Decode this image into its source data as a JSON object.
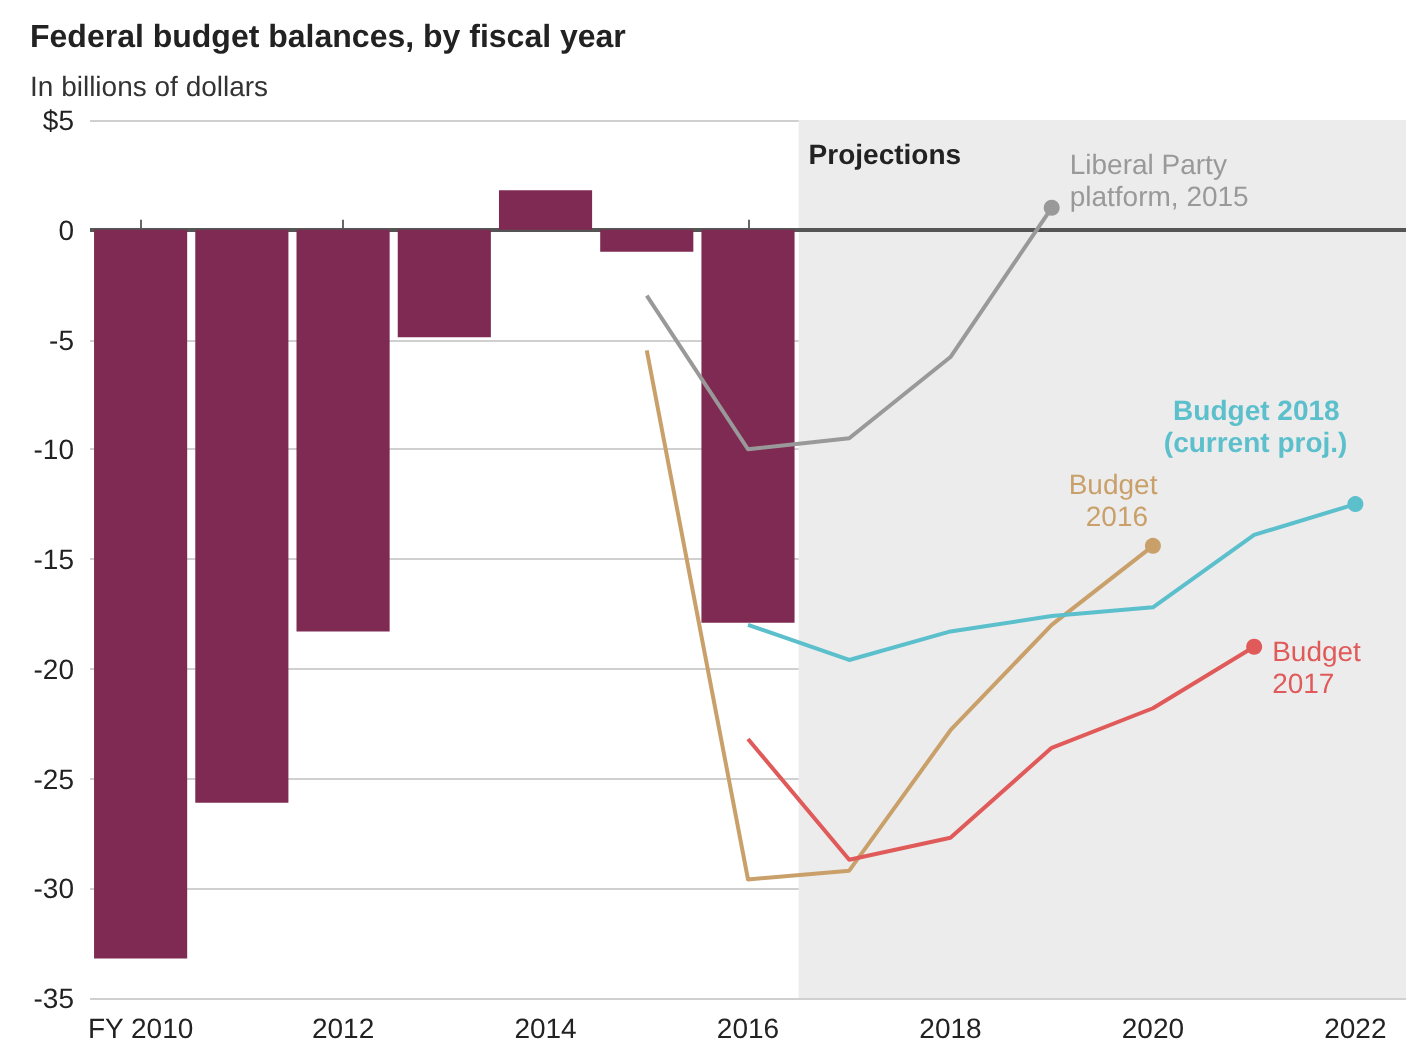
{
  "chart_data": {
    "type": "bar",
    "title": "Federal budget balances, by fiscal year",
    "subtitle": "In billions of dollars",
    "x": [
      2010,
      2011,
      2012,
      2013,
      2014,
      2015,
      2016
    ],
    "series": [
      {
        "color": "#7f2a52",
        "values": [
          -33.2,
          -26.1,
          -18.3,
          -4.9,
          1.8,
          -1.0,
          -17.9
        ]
      },
      {
        "type": "line",
        "name": "Liberal Party platform, 2015",
        "color": "#999999",
        "x": [
          2015,
          2016,
          2017,
          2018,
          2019
        ],
        "values": [
          -3.0,
          -10.0,
          -9.5,
          -5.8,
          1.0
        ]
      },
      {
        "type": "line",
        "name": "Budget 2016",
        "color": "#c9a06a",
        "x": [
          2015,
          2016,
          2017,
          2018,
          2019,
          2020
        ],
        "values": [
          -5.5,
          -29.6,
          -29.2,
          -22.8,
          -18.0,
          -14.4
        ]
      },
      {
        "type": "line",
        "name": "Budget 2017",
        "color": "#e05a5a",
        "x": [
          2016,
          2017,
          2018,
          2019,
          2020,
          2021
        ],
        "values": [
          -23.2,
          -28.7,
          -27.7,
          -23.6,
          -21.8,
          -19.0
        ]
      },
      {
        "type": "line",
        "name": "Budget 2018 (current proj.)",
        "color": "#5bbfcc",
        "x": [
          2016,
          2017,
          2018,
          2019,
          2020,
          2021,
          2022
        ],
        "values": [
          -18.0,
          -19.6,
          -18.3,
          -17.6,
          -17.2,
          -13.9,
          -12.5
        ]
      }
    ],
    "xlim": [
      2009.5,
      2022.5
    ],
    "xticks": [
      {
        "value": 2010,
        "label": "FY 2010"
      },
      2012,
      2014,
      2016,
      2018,
      2020,
      2022
    ],
    "ylim": [
      -35,
      5
    ],
    "yticks": [
      {
        "value": 5,
        "label": "$5"
      },
      0,
      -5,
      -10,
      -15,
      -20,
      -25,
      -30,
      -35
    ],
    "grid": "y",
    "ref_lines": [
      {
        "axis": "y",
        "value": 0,
        "color": "#555555"
      }
    ],
    "bands": [
      {
        "axis": "x",
        "from": 2016.5,
        "to": 2022.5,
        "label": "Projections",
        "color": "#ececec"
      }
    ]
  }
}
